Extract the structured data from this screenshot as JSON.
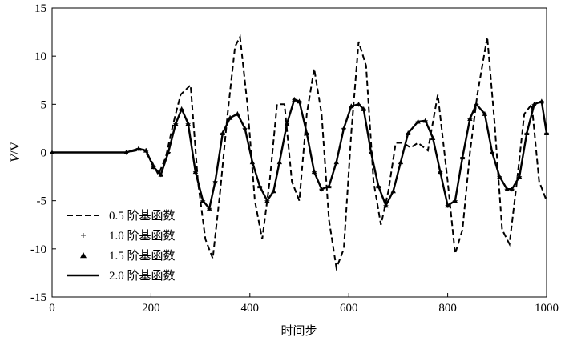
{
  "chart_data": {
    "type": "line",
    "ylabel": "V/V",
    "ylabel_parts": {
      "var": "V",
      "unit": "/V"
    },
    "xlabel": "时间步",
    "xlim": [
      0,
      1000
    ],
    "ylim": [
      -15,
      15
    ],
    "x_ticks": [
      0,
      200,
      400,
      600,
      800,
      1000
    ],
    "y_ticks": [
      -15,
      -10,
      -5,
      0,
      5,
      10,
      15
    ],
    "grid": false,
    "legend_position": "bottom-left",
    "series": [
      {
        "name": "0.5 阶基函数",
        "style": "dashed-line",
        "x": [
          0,
          150,
          170,
          185,
          200,
          215,
          230,
          245,
          260,
          280,
          295,
          310,
          325,
          340,
          355,
          370,
          380,
          395,
          410,
          425,
          440,
          455,
          470,
          485,
          500,
          515,
          530,
          545,
          560,
          575,
          590,
          605,
          620,
          635,
          650,
          665,
          680,
          695,
          710,
          725,
          740,
          760,
          780,
          800,
          815,
          830,
          845,
          860,
          880,
          895,
          910,
          925,
          940,
          955,
          970,
          985,
          1000
        ],
        "y": [
          0,
          0,
          0.2,
          0.3,
          -0.8,
          -2.3,
          -0.5,
          3,
          6,
          7,
          -3,
          -9,
          -11,
          -4,
          4,
          11,
          12,
          5,
          -5,
          -9,
          -3,
          5,
          5,
          -3,
          -5,
          4,
          8.7,
          4,
          -7,
          -12,
          -10,
          2,
          11.5,
          9,
          -3,
          -7.5,
          -4,
          1,
          1,
          0.5,
          1,
          0.2,
          6,
          -3,
          -10.5,
          -8,
          0,
          6,
          12,
          3,
          -8,
          -9.5,
          -3,
          4,
          5,
          -3,
          -5
        ]
      },
      {
        "name": "1.0 阶基函数",
        "style": "plus-marker",
        "x": [
          0,
          150,
          175,
          190,
          205,
          220,
          235,
          250,
          262,
          275,
          290,
          305,
          318,
          330,
          345,
          360,
          375,
          390,
          405,
          420,
          435,
          448,
          460,
          475,
          490,
          500,
          515,
          530,
          545,
          560,
          575,
          590,
          605,
          620,
          630,
          645,
          660,
          675,
          690,
          705,
          720,
          740,
          755,
          770,
          785,
          800,
          815,
          830,
          845,
          858,
          875,
          890,
          905,
          920,
          930,
          945,
          960,
          975,
          990,
          1000
        ],
        "y": [
          0,
          0,
          0.4,
          0.2,
          -1.5,
          -2.3,
          0,
          3,
          4.5,
          3,
          -2,
          -5,
          -5.8,
          -3,
          2,
          3.6,
          4,
          2.5,
          -1,
          -3.5,
          -5,
          -4,
          -1,
          3,
          5.5,
          5.3,
          2,
          -2,
          -3.8,
          -3.5,
          -1,
          2.5,
          4.8,
          5,
          4.5,
          0,
          -3.5,
          -5.5,
          -4,
          -1,
          2,
          3.2,
          3.3,
          1.5,
          -2,
          -5.5,
          -5,
          -0.5,
          3.5,
          5,
          4,
          0,
          -2.5,
          -3.8,
          -3.8,
          -2.5,
          2,
          5,
          5.3,
          2
        ]
      },
      {
        "name": "1.5 阶基函数",
        "style": "triangle-marker",
        "x": [
          0,
          150,
          175,
          190,
          205,
          220,
          235,
          250,
          262,
          275,
          290,
          305,
          318,
          330,
          345,
          360,
          375,
          390,
          405,
          420,
          435,
          448,
          460,
          475,
          490,
          500,
          515,
          530,
          545,
          560,
          575,
          590,
          605,
          620,
          630,
          645,
          660,
          675,
          690,
          705,
          720,
          740,
          755,
          770,
          785,
          800,
          815,
          830,
          845,
          858,
          875,
          890,
          905,
          920,
          930,
          945,
          960,
          975,
          990,
          1000
        ],
        "y": [
          0,
          0,
          0.4,
          0.2,
          -1.5,
          -2.3,
          0,
          3,
          4.5,
          3,
          -2,
          -5,
          -5.8,
          -3,
          2,
          3.6,
          4,
          2.5,
          -1,
          -3.5,
          -5,
          -4,
          -1,
          3,
          5.5,
          5.3,
          2,
          -2,
          -3.8,
          -3.5,
          -1,
          2.5,
          4.8,
          5,
          4.5,
          0,
          -3.5,
          -5.5,
          -4,
          -1,
          2,
          3.2,
          3.3,
          1.5,
          -2,
          -5.5,
          -5,
          -0.5,
          3.5,
          5,
          4,
          0,
          -2.5,
          -3.8,
          -3.8,
          -2.5,
          2,
          5,
          5.3,
          2
        ]
      },
      {
        "name": "2.0 阶基函数",
        "style": "solid-line",
        "x": [
          0,
          150,
          175,
          190,
          205,
          220,
          235,
          250,
          262,
          275,
          290,
          305,
          318,
          330,
          345,
          360,
          375,
          390,
          405,
          420,
          435,
          448,
          460,
          475,
          490,
          500,
          515,
          530,
          545,
          560,
          575,
          590,
          605,
          620,
          630,
          645,
          660,
          675,
          690,
          705,
          720,
          740,
          755,
          770,
          785,
          800,
          815,
          830,
          845,
          858,
          875,
          890,
          905,
          920,
          930,
          945,
          960,
          975,
          990,
          1000
        ],
        "y": [
          0,
          0,
          0.4,
          0.2,
          -1.5,
          -2.3,
          0,
          3,
          4.5,
          3,
          -2,
          -5,
          -5.8,
          -3,
          2,
          3.6,
          4,
          2.5,
          -1,
          -3.5,
          -5,
          -4,
          -1,
          3,
          5.5,
          5.3,
          2,
          -2,
          -3.8,
          -3.5,
          -1,
          2.5,
          4.8,
          5,
          4.5,
          0,
          -3.5,
          -5.5,
          -4,
          -1,
          2,
          3.2,
          3.3,
          1.5,
          -2,
          -5.5,
          -5,
          -0.5,
          3.5,
          5,
          4,
          0,
          -2.5,
          -3.8,
          -3.8,
          -2.5,
          2,
          5,
          5.3,
          2
        ]
      }
    ]
  }
}
